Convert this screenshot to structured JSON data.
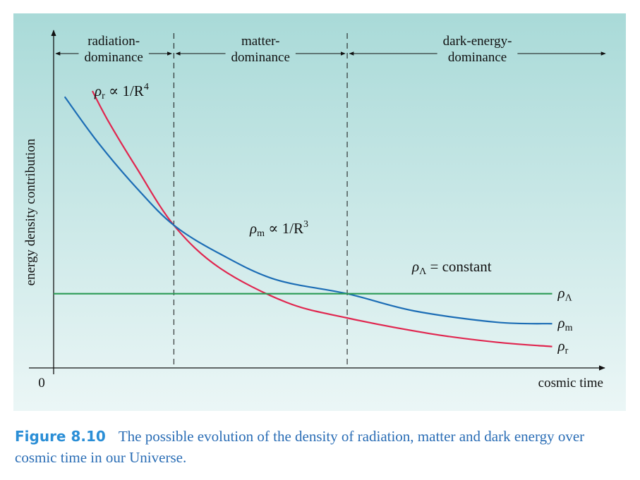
{
  "figure": {
    "caption_label": "Figure 8.10",
    "caption_text": "The possible evolution of the density of radiation, matter and dark energy over cosmic time in our Universe."
  },
  "colors": {
    "panel_top": "#a9dad8",
    "panel_bottom": "#ebf6f6",
    "radiation": "#e0264f",
    "matter": "#1c6db5",
    "dark_energy": "#2a9a55",
    "caption_label": "#2a8ed6",
    "caption_text": "#2a6db5"
  },
  "chart_data": {
    "type": "line",
    "xlabel": "cosmic time",
    "ylabel": "energy density contribution",
    "origin_label": "0",
    "x_range": [
      0,
      10
    ],
    "y_range": [
      0,
      10
    ],
    "eras": [
      {
        "name_line1": "radiation-",
        "name_line2": "dominance",
        "x_start": 0,
        "x_end": 2.17
      },
      {
        "name_line1": "matter-",
        "name_line2": "dominance",
        "x_start": 2.17,
        "x_end": 5.3
      },
      {
        "name_line1": "dark-energy-",
        "name_line2": "dominance",
        "x_start": 5.3,
        "x_end": 10
      }
    ],
    "series": [
      {
        "key": "radiation",
        "name": "ρr",
        "sym": "ρ",
        "sub": "r",
        "law_prefix": "ρ",
        "law_sub": "r",
        "law_text": " ∝ 1/R",
        "law_sup": "4",
        "x": [
          0.7,
          1.0,
          1.5,
          2.17,
          3.0,
          4.2,
          5.3,
          6.8,
          8.0,
          9.0
        ],
        "y": [
          9.7,
          8.6,
          7.0,
          5.0,
          3.5,
          2.3,
          1.75,
          1.2,
          0.9,
          0.75
        ]
      },
      {
        "key": "matter",
        "name": "ρm",
        "sym": "ρ",
        "sub": "m",
        "law_prefix": "ρ",
        "law_sub": "m",
        "law_text": " ∝ 1/R",
        "law_sup": "3",
        "x": [
          0.2,
          0.8,
          1.5,
          2.17,
          3.0,
          4.0,
          5.3,
          6.5,
          8.0,
          9.0
        ],
        "y": [
          9.5,
          7.9,
          6.3,
          5.0,
          4.0,
          3.1,
          2.6,
          2.0,
          1.6,
          1.55
        ]
      },
      {
        "key": "dark_energy",
        "name": "ρΛ",
        "sym": "ρ",
        "sub": "Λ",
        "law_prefix": "ρ",
        "law_sub": "Λ",
        "law_text": " = constant",
        "law_sup": "",
        "x": [
          0,
          9.0
        ],
        "y": [
          2.6,
          2.6
        ]
      }
    ]
  }
}
